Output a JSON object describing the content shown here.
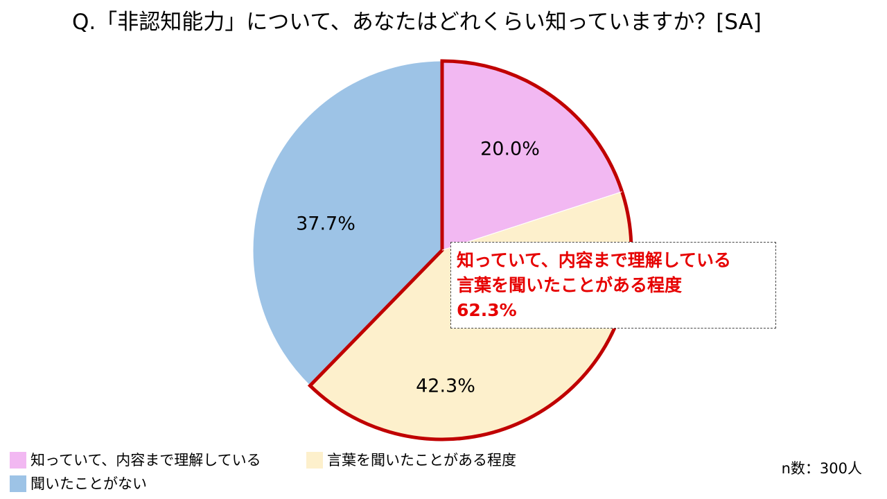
{
  "title": "Q.「非認知能力」について、あなたはどれくらい知っていますか？[SA]",
  "chart_data": {
    "type": "pie",
    "categories": [
      "知っていて、内容まで理解している",
      "言葉を聞いたことがある程度",
      "聞いたことがない"
    ],
    "values": [
      20.0,
      42.3,
      37.7
    ],
    "value_labels": [
      "20.0%",
      "42.3%",
      "37.7%"
    ],
    "colors": [
      "#f2b8f2",
      "#fdf0cc",
      "#9dc3e6"
    ],
    "highlight": {
      "categories": [
        "知っていて、内容まで理解している",
        "言葉を聞いたことがある程度"
      ],
      "border_color": "#c00000"
    },
    "start_angle_deg": 0,
    "direction": "clockwise",
    "legend_placement": "bottom-left"
  },
  "callout": {
    "line1": "知っていて、内容まで理解している",
    "line2": "言葉を聞いたことがある程度",
    "value": "62.3%",
    "color": "#e60000"
  },
  "legend": [
    {
      "label": "知っていて、内容まで理解している",
      "color": "#f2b8f2"
    },
    {
      "label": "言葉を聞いたことがある程度",
      "color": "#fdf0cc"
    },
    {
      "label": "聞いたことがない",
      "color": "#9dc3e6"
    }
  ],
  "sample_size": "n数：300人"
}
